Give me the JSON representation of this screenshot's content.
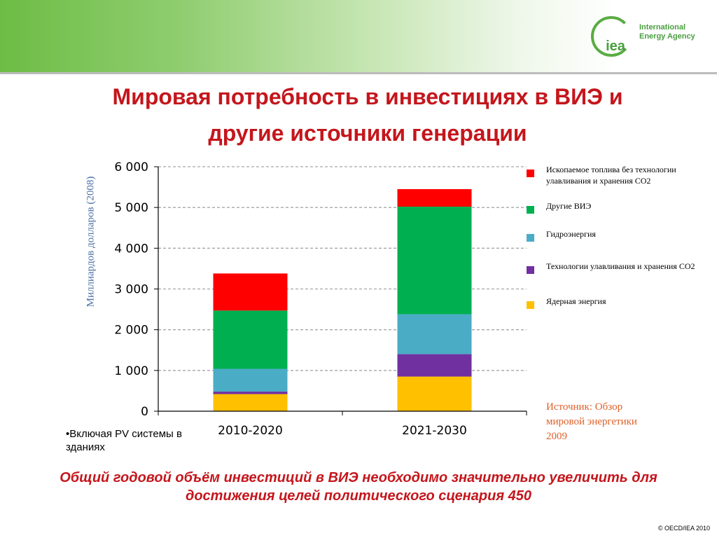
{
  "header": {
    "logo": {
      "mark": "iea",
      "line1": "International",
      "line2": "Energy Agency"
    }
  },
  "title": {
    "line1": "Мировая потребность в инвестициях в ВИЭ и",
    "line2": "другие источники генерации"
  },
  "chart_data": {
    "type": "bar",
    "stacked": true,
    "categories": [
      "2010-2020",
      "2021-2030"
    ],
    "series": [
      {
        "name": "Ядерная энергия",
        "color": "#ffc000",
        "values": [
          420,
          850
        ]
      },
      {
        "name": "Технологии улавливания и хранения СО2",
        "color": "#7030a0",
        "values": [
          60,
          550
        ]
      },
      {
        "name": "Гидроэнергия",
        "color": "#4bacc6",
        "values": [
          560,
          980
        ]
      },
      {
        "name": "Другие ВИЭ",
        "color": "#00b050",
        "values": [
          1430,
          2640
        ]
      },
      {
        "name": "Ископаемое топлива без технологии улавливания и  хранения СО2",
        "color": "#ff0000",
        "values": [
          910,
          430
        ]
      }
    ],
    "ylabel": "Миллиардов долларов (2008)",
    "ylim": [
      0,
      6000
    ],
    "yticks": [
      0,
      1000,
      2000,
      3000,
      4000,
      5000,
      6000
    ],
    "ytick_labels": [
      "0",
      "1 000",
      "2 000",
      "3 000",
      "4 000",
      "5 000",
      "6 000"
    ],
    "grid": "horizontal-dashed",
    "legend_position": "right"
  },
  "legend_order": [
    4,
    3,
    2,
    1,
    0
  ],
  "source_note": "Источник: Обзор мировой энергетики 2009",
  "footnote": "•Включая PV системы в зданиях",
  "conclusion": {
    "line1": "Общий годовой объём инвестиций в ВИЭ необходимо значительно увеличить для",
    "line2": "достижения целей политического сценария 450"
  },
  "copyright": "© OECD/IEA 2010"
}
